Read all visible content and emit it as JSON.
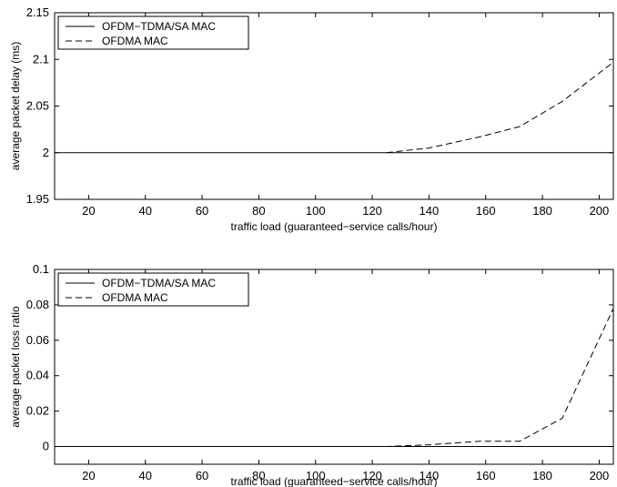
{
  "chart_data": [
    {
      "type": "line",
      "xlabel": "traffic load (guaranteed−service calls/hour)",
      "ylabel": "average packet delay (ms)",
      "xlim": [
        8,
        205
      ],
      "ylim": [
        1.95,
        2.15
      ],
      "xticks": [
        20,
        40,
        60,
        80,
        100,
        120,
        140,
        160,
        180,
        200
      ],
      "yticks": [
        1.95,
        2,
        2.05,
        2.1,
        2.15
      ],
      "ytick_labels": [
        "1.95",
        "2",
        "2.05",
        "2.1",
        "2.15"
      ],
      "grid": false,
      "legend": "top-left",
      "series": [
        {
          "name": "OFDM−TDMA/SA MAC",
          "style": "solid",
          "color": "#000000",
          "x": [
            8,
            205
          ],
          "y": [
            2.0,
            2.0
          ]
        },
        {
          "name": "OFDMA MAC",
          "style": "dashed",
          "color": "#000000",
          "x": [
            125,
            140,
            158,
            172,
            187,
            205
          ],
          "y": [
            2.0,
            2.005,
            2.017,
            2.028,
            2.055,
            2.097
          ]
        }
      ]
    },
    {
      "type": "line",
      "xlabel": "traffic load (guaranteed−service calls/hour)",
      "ylabel": "average packet loss ratio",
      "xlim": [
        8,
        205
      ],
      "ylim": [
        -0.01,
        0.1
      ],
      "xticks": [
        20,
        40,
        60,
        80,
        100,
        120,
        140,
        160,
        180,
        200
      ],
      "yticks": [
        0,
        0.02,
        0.04,
        0.06,
        0.08,
        0.1
      ],
      "ytick_labels": [
        "0",
        "0.02",
        "0.04",
        "0.06",
        "0.08",
        "0.1"
      ],
      "grid": false,
      "legend": "top-left",
      "series": [
        {
          "name": "OFDM−TDMA/SA MAC",
          "style": "solid",
          "color": "#000000",
          "x": [
            8,
            205
          ],
          "y": [
            0,
            0
          ]
        },
        {
          "name": "OFDMA MAC",
          "style": "dashed",
          "color": "#000000",
          "x": [
            8,
            125,
            140,
            158,
            172,
            187,
            205
          ],
          "y": [
            0,
            0,
            0.001,
            0.003,
            0.003,
            0.016,
            0.078
          ]
        }
      ]
    }
  ]
}
